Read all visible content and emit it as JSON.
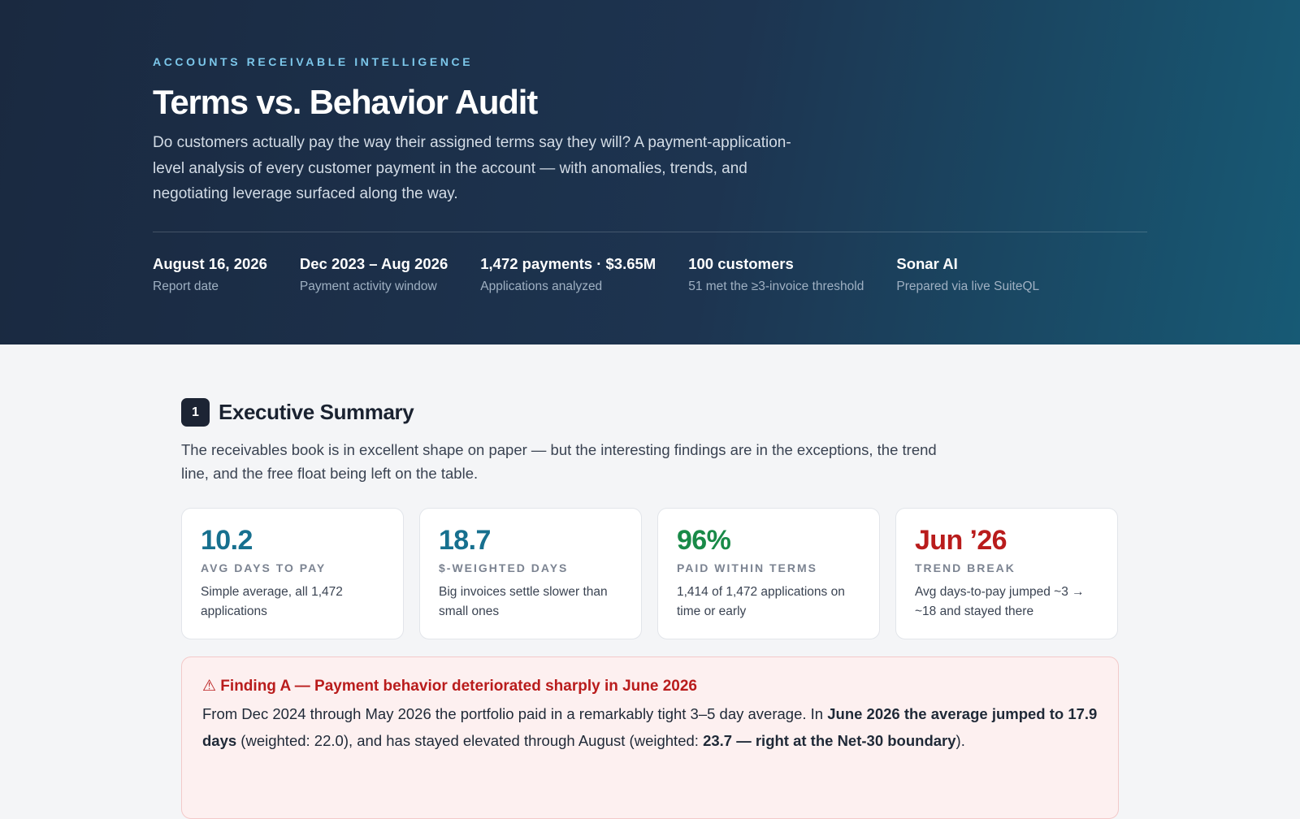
{
  "header": {
    "eyebrow": "ACCOUNTS RECEIVABLE INTELLIGENCE",
    "title": "Terms vs. Behavior Audit",
    "subtitle": "Do customers actually pay the way their assigned terms say they will? A payment-application-level analysis of every customer payment in the account — with anomalies, trends, and negotiating leverage surfaced along the way.",
    "meta": [
      {
        "value": "August 16, 2026",
        "label": "Report date"
      },
      {
        "value": "Dec 2023 – Aug 2026",
        "label": "Payment activity window"
      },
      {
        "value": "1,472 payments · $3.65M",
        "label": "Applications analyzed"
      },
      {
        "value": "100 customers",
        "label": "51 met the ≥3-invoice threshold"
      },
      {
        "value": "Sonar AI",
        "label": "Prepared via live SuiteQL"
      }
    ]
  },
  "summary": {
    "number": "1",
    "title": "Executive Summary",
    "intro": "The receivables book is in excellent shape on paper — but the interesting findings are in the exceptions, the trend line, and the free float being left on the table.",
    "cards": [
      {
        "value": "10.2",
        "label": "AVG DAYS TO PAY",
        "desc": "Simple average, all 1,472 applications",
        "color": "#17708f"
      },
      {
        "value": "18.7",
        "label": "$-WEIGHTED DAYS",
        "desc": "Big invoices settle slower than small ones",
        "color": "#17708f"
      },
      {
        "value": "96%",
        "label": "PAID WITHIN TERMS",
        "desc": "1,414 of 1,472 applications on time or early",
        "color": "#198a48"
      },
      {
        "value": "Jun ’26",
        "label": "TREND BREAK",
        "desc": "Avg days-to-pay jumped ~3 → ~18 and stayed there",
        "color": "#b91c1c"
      }
    ],
    "finding": {
      "title": "⚠ Finding A — Payment behavior deteriorated sharply in June 2026",
      "body": [
        {
          "text": "From Dec 2024 through May 2026 the portfolio paid in a remarkably tight 3–5 day average. In ",
          "bold": false
        },
        {
          "text": "June 2026 the average jumped to 17.9 days",
          "bold": true
        },
        {
          "text": " (weighted: 22.0), and has stayed elevated through August (weighted: ",
          "bold": false
        },
        {
          "text": "23.7 — right at the Net-30 boundary",
          "bold": true
        },
        {
          "text": ").",
          "bold": false
        }
      ]
    }
  }
}
